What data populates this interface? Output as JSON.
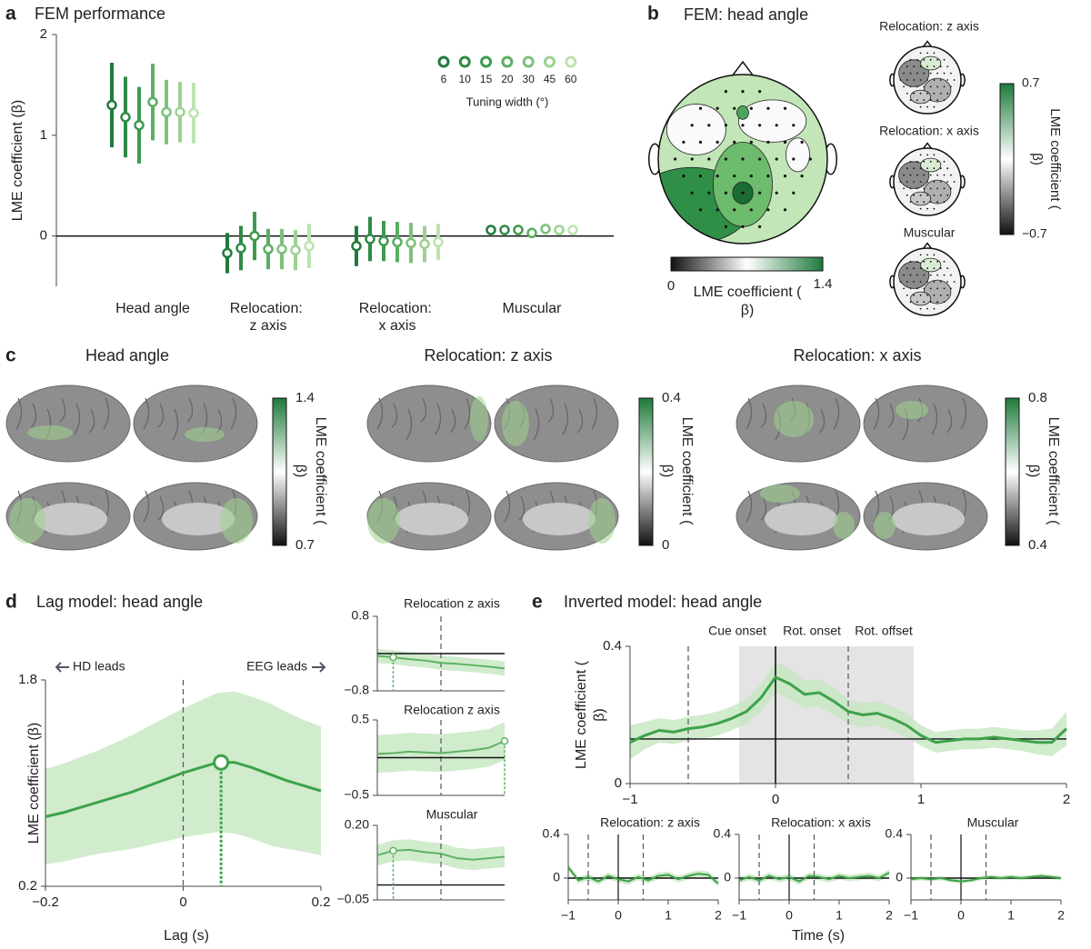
{
  "panel_labels": [
    "a",
    "b",
    "c",
    "d",
    "e"
  ],
  "chart_data": [
    {
      "type": "errorbar",
      "title": "FEM performance",
      "ylabel": "LME coefficient (β)",
      "categories": [
        "Head angle",
        "Relocation: z axis",
        "Relocation: x axis",
        "Muscular"
      ],
      "ylim": [
        -0.5,
        2
      ],
      "yticks": [
        0,
        1,
        2
      ],
      "legend_title": "Tuning width (°)",
      "series": [
        {
          "name": "6",
          "color": "#217a3c",
          "values": [
            1.3,
            -0.17,
            -0.1,
            0.06
          ],
          "errors": [
            0.42,
            0.2,
            0.2,
            0.04
          ]
        },
        {
          "name": "10",
          "color": "#2e8b46",
          "values": [
            1.18,
            -0.12,
            -0.03,
            0.06
          ],
          "errors": [
            0.4,
            0.22,
            0.22,
            0.04
          ]
        },
        {
          "name": "15",
          "color": "#3d9b50",
          "values": [
            1.1,
            0.0,
            -0.05,
            0.06
          ],
          "errors": [
            0.38,
            0.24,
            0.2,
            0.03
          ]
        },
        {
          "name": "20",
          "color": "#5aae62",
          "values": [
            1.33,
            -0.13,
            -0.06,
            0.03
          ],
          "errors": [
            0.38,
            0.2,
            0.2,
            0.04
          ]
        },
        {
          "name": "30",
          "color": "#7cc17a",
          "values": [
            1.23,
            -0.13,
            -0.07,
            0.07
          ],
          "errors": [
            0.32,
            0.2,
            0.2,
            0.03
          ]
        },
        {
          "name": "45",
          "color": "#9dd193",
          "values": [
            1.23,
            -0.14,
            -0.08,
            0.06
          ],
          "errors": [
            0.3,
            0.2,
            0.18,
            0.03
          ]
        },
        {
          "name": "60",
          "color": "#bde3b0",
          "values": [
            1.22,
            -0.1,
            -0.06,
            0.06
          ],
          "errors": [
            0.3,
            0.22,
            0.18,
            0.03
          ]
        }
      ]
    },
    {
      "type": "line",
      "title": "Lag model: head angle",
      "xlabel": "Lag (s)",
      "ylabel": "LME coefficient (β)",
      "annotations": [
        "HD leads",
        "EEG leads"
      ],
      "xlim": [
        -0.2,
        0.2
      ],
      "xticks": [
        {
          "value": -0.2,
          "label": "−0.2"
        },
        0,
        0.2
      ],
      "ylim": [
        0.2,
        1.8
      ],
      "yticks": [
        0.2,
        1.8
      ],
      "vlines": [
        0
      ],
      "color": "#3da24a",
      "x": [
        -0.2,
        -0.175,
        -0.15,
        -0.125,
        -0.1,
        -0.075,
        -0.05,
        -0.025,
        0,
        0.025,
        0.05,
        0.075,
        0.1,
        0.125,
        0.15,
        0.175,
        0.2
      ],
      "values": [
        0.74,
        0.77,
        0.81,
        0.85,
        0.89,
        0.93,
        0.98,
        1.03,
        1.08,
        1.12,
        1.16,
        1.16,
        1.12,
        1.07,
        1.02,
        0.98,
        0.94
      ],
      "errors": [
        0.37,
        0.38,
        0.39,
        0.4,
        0.42,
        0.44,
        0.46,
        0.48,
        0.5,
        0.52,
        0.54,
        0.55,
        0.55,
        0.55,
        0.53,
        0.51,
        0.5
      ],
      "peak": {
        "x": 0.055,
        "y": 1.16
      }
    },
    {
      "type": "line",
      "title": "Relocation z axis",
      "xlim": [
        -0.2,
        0.2
      ],
      "ylim": [
        -0.8,
        0.8
      ],
      "yticks": [
        {
          "value": -0.8,
          "label": "−0.8"
        },
        0.8
      ],
      "vlines": [
        0
      ],
      "hline": 0,
      "color": "#5fb264",
      "x": [
        -0.2,
        -0.15,
        -0.1,
        -0.05,
        0,
        0.05,
        0.1,
        0.15,
        0.2
      ],
      "values": [
        -0.05,
        -0.08,
        -0.12,
        -0.15,
        -0.2,
        -0.22,
        -0.25,
        -0.28,
        -0.32
      ],
      "errors": [
        0.15,
        0.15,
        0.15,
        0.15,
        0.15,
        0.15,
        0.15,
        0.15,
        0.15
      ],
      "peak": {
        "x": -0.15,
        "y": -0.08
      }
    },
    {
      "type": "line",
      "title": "Relocation z axis",
      "xlim": [
        -0.2,
        0.2
      ],
      "ylim": [
        -0.5,
        0.5
      ],
      "yticks": [
        {
          "value": -0.5,
          "label": "−0.5"
        },
        0.5
      ],
      "vlines": [
        0
      ],
      "hline": 0,
      "color": "#5fb264",
      "x": [
        -0.2,
        -0.15,
        -0.1,
        -0.05,
        0,
        0.05,
        0.1,
        0.15,
        0.2
      ],
      "values": [
        0.05,
        0.06,
        0.08,
        0.07,
        0.06,
        0.08,
        0.1,
        0.13,
        0.22
      ],
      "errors": [
        0.25,
        0.25,
        0.25,
        0.25,
        0.25,
        0.25,
        0.25,
        0.25,
        0.25
      ],
      "peak": {
        "x": 0.2,
        "y": 0.22
      }
    },
    {
      "type": "line",
      "title": "Muscular",
      "xlim": [
        -0.2,
        0.2
      ],
      "ylim": [
        -0.05,
        0.2
      ],
      "yticks": [
        {
          "value": -0.05,
          "label": "−0.05"
        },
        {
          "value": 0.2,
          "label": "0.20"
        }
      ],
      "vlines": [
        0
      ],
      "hline": 0,
      "color": "#5fb264",
      "x": [
        -0.2,
        -0.15,
        -0.1,
        -0.05,
        0,
        0.05,
        0.1,
        0.15,
        0.2
      ],
      "values": [
        0.1,
        0.115,
        0.118,
        0.11,
        0.105,
        0.09,
        0.085,
        0.09,
        0.095
      ],
      "errors": [
        0.035,
        0.035,
        0.035,
        0.035,
        0.035,
        0.035,
        0.035,
        0.035,
        0.035
      ],
      "peak": {
        "x": -0.15,
        "y": 0.115
      }
    },
    {
      "type": "line",
      "title": "Inverted model: head angle",
      "ylabel": "LME coefficient (β)",
      "annotations": [
        "Cue onset",
        "Rot. onset",
        "Rot. offset"
      ],
      "xlim": [
        -1,
        2
      ],
      "xticks": [
        {
          "value": -1,
          "label": "−1"
        },
        0,
        1,
        2
      ],
      "ylim": [
        0,
        0.4
      ],
      "yticks": [
        0,
        0.4
      ],
      "vlines": [
        -0.6,
        0,
        0.5
      ],
      "shade": [
        -0.25,
        0.95
      ],
      "hline": 0.13,
      "color": "#3da24a",
      "x": [
        -1,
        -0.9,
        -0.8,
        -0.7,
        -0.6,
        -0.5,
        -0.4,
        -0.3,
        -0.2,
        -0.1,
        0,
        0.1,
        0.2,
        0.3,
        0.4,
        0.5,
        0.6,
        0.7,
        0.8,
        0.9,
        1,
        1.1,
        1.2,
        1.3,
        1.4,
        1.5,
        1.6,
        1.7,
        1.8,
        1.9,
        2
      ],
      "values": [
        0.12,
        0.14,
        0.155,
        0.15,
        0.16,
        0.165,
        0.175,
        0.19,
        0.21,
        0.25,
        0.31,
        0.29,
        0.26,
        0.265,
        0.24,
        0.21,
        0.2,
        0.205,
        0.19,
        0.17,
        0.14,
        0.12,
        0.125,
        0.13,
        0.13,
        0.135,
        0.13,
        0.125,
        0.12,
        0.12,
        0.16
      ],
      "errors": [
        0.05,
        0.04,
        0.035,
        0.035,
        0.035,
        0.035,
        0.035,
        0.035,
        0.035,
        0.04,
        0.045,
        0.045,
        0.04,
        0.04,
        0.04,
        0.035,
        0.035,
        0.035,
        0.035,
        0.035,
        0.03,
        0.03,
        0.03,
        0.03,
        0.03,
        0.03,
        0.03,
        0.03,
        0.035,
        0.04,
        0.05
      ]
    },
    {
      "type": "line",
      "title": "Relocation: z axis",
      "xlim": [
        -1,
        2
      ],
      "xticks": [
        {
          "value": -1,
          "label": "−1"
        },
        0,
        1,
        2
      ],
      "ylim": [
        -0.2,
        0.4
      ],
      "yticks": [
        0,
        0.4
      ],
      "vlines": [
        -0.6,
        0,
        0.5
      ],
      "hline": 0,
      "color": "#3da24a",
      "x": [
        -1,
        -0.8,
        -0.6,
        -0.4,
        -0.2,
        0,
        0.2,
        0.4,
        0.6,
        0.8,
        1,
        1.2,
        1.4,
        1.6,
        1.8,
        2
      ],
      "values": [
        0.1,
        -0.02,
        0.01,
        -0.03,
        0.02,
        -0.01,
        -0.03,
        0.01,
        -0.02,
        0.02,
        0.03,
        -0.01,
        0.02,
        0.04,
        0.03,
        -0.05
      ],
      "errors": [
        0.03,
        0.03,
        0.03,
        0.03,
        0.03,
        0.03,
        0.03,
        0.03,
        0.03,
        0.03,
        0.03,
        0.03,
        0.03,
        0.03,
        0.03,
        0.03
      ]
    },
    {
      "type": "line",
      "title": "Relocation: x axis",
      "xlim": [
        -1,
        2
      ],
      "xticks": [
        {
          "value": -1,
          "label": "−1"
        },
        0,
        1,
        2
      ],
      "ylim": [
        -0.2,
        0.4
      ],
      "yticks": [
        0,
        0.4
      ],
      "vlines": [
        -0.6,
        0,
        0.5
      ],
      "hline": 0,
      "color": "#3da24a",
      "x": [
        -1,
        -0.8,
        -0.6,
        -0.4,
        -0.2,
        0,
        0.2,
        0.4,
        0.6,
        0.8,
        1,
        1.2,
        1.4,
        1.6,
        1.8,
        2
      ],
      "values": [
        -0.02,
        0.01,
        -0.02,
        0.02,
        -0.01,
        0.01,
        -0.03,
        0.02,
        0.01,
        -0.01,
        0.02,
        0.0,
        0.01,
        0.02,
        0.0,
        0.05
      ],
      "errors": [
        0.03,
        0.03,
        0.03,
        0.03,
        0.03,
        0.03,
        0.03,
        0.03,
        0.03,
        0.03,
        0.03,
        0.03,
        0.03,
        0.03,
        0.03,
        0.03
      ]
    },
    {
      "type": "line",
      "title": "Muscular",
      "xlabel": "Time (s)",
      "xlim": [
        -1,
        2
      ],
      "xticks": [
        {
          "value": -1,
          "label": "−1"
        },
        0,
        1,
        2
      ],
      "ylim": [
        -0.2,
        0.4
      ],
      "yticks": [
        0,
        0.4
      ],
      "vlines": [
        -0.6,
        0,
        0.5
      ],
      "hline": 0,
      "color": "#3da24a",
      "x": [
        -1,
        -0.8,
        -0.6,
        -0.4,
        -0.2,
        0,
        0.2,
        0.4,
        0.6,
        0.8,
        1,
        1.2,
        1.4,
        1.6,
        1.8,
        2
      ],
      "values": [
        -0.01,
        0.0,
        -0.01,
        0.0,
        -0.02,
        -0.03,
        -0.02,
        0.0,
        0.01,
        0.0,
        0.01,
        0.0,
        0.01,
        0.02,
        0.01,
        0.0
      ],
      "errors": [
        0.02,
        0.02,
        0.02,
        0.02,
        0.02,
        0.02,
        0.02,
        0.02,
        0.02,
        0.02,
        0.02,
        0.02,
        0.02,
        0.02,
        0.02,
        0.02
      ]
    }
  ],
  "panel_b": {
    "title": "FEM: head angle",
    "colorbar": {
      "lim": [
        0,
        1.4
      ],
      "ticks": [
        0,
        1.4
      ],
      "label": "LME coefficient (β)"
    },
    "small_titles": [
      "Relocation: z axis",
      "Relocation: x axis",
      "Muscular"
    ],
    "small_colorbar": {
      "lim": [
        -0.7,
        0.7
      ],
      "ticks": [
        0.7,
        {
          "value": -0.7,
          "label": "−0.7"
        }
      ],
      "label": "LME coefficient (β)"
    }
  },
  "panel_c": [
    {
      "title": "Head angle",
      "lim": [
        0.7,
        1.4
      ],
      "ticks": [
        1.4,
        0.7
      ],
      "label": "LME coefficient (β)"
    },
    {
      "title": "Relocation: z axis",
      "lim": [
        0,
        0.4
      ],
      "ticks": [
        0.4,
        0
      ],
      "label": "LME coefficient (β)"
    },
    {
      "title": "Relocation: x axis",
      "lim": [
        0.4,
        0.8
      ],
      "ticks": [
        0.8,
        0.4
      ],
      "label": "LME coefficient (β)"
    }
  ]
}
